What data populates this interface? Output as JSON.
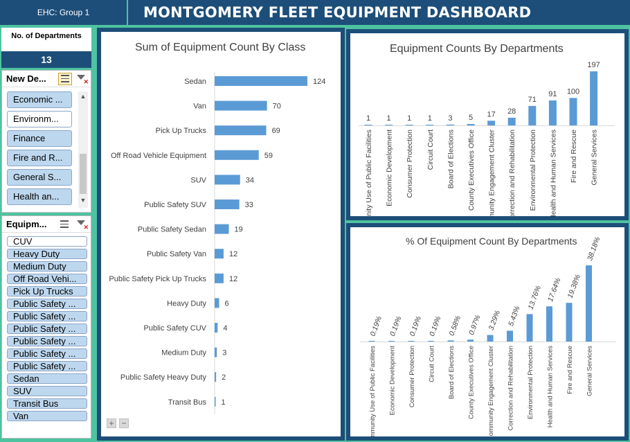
{
  "header": {
    "group_label": "EHC: Group 1",
    "title": "MONTGOMERY FLEET EQUIPMENT DASHBOARD"
  },
  "kpi": {
    "label": "No. of Departments",
    "value": "13"
  },
  "dept_slicer": {
    "title": "New De...",
    "items": [
      {
        "label": "Economic ...",
        "selected": true
      },
      {
        "label": "Environm...",
        "selected": false
      },
      {
        "label": "Finance",
        "selected": true
      },
      {
        "label": "Fire and R...",
        "selected": true
      },
      {
        "label": "General S...",
        "selected": true
      },
      {
        "label": "Health an...",
        "selected": true
      }
    ]
  },
  "equip_slicer": {
    "title": "Equipm...",
    "items": [
      {
        "label": "CUV",
        "selected": false
      },
      {
        "label": "Heavy Duty",
        "selected": true
      },
      {
        "label": "Medium Duty",
        "selected": true
      },
      {
        "label": "Off Road Vehi...",
        "selected": true
      },
      {
        "label": "Pick Up Trucks",
        "selected": true
      },
      {
        "label": "Public Safety ...",
        "selected": true
      },
      {
        "label": "Public Safety ...",
        "selected": true
      },
      {
        "label": "Public Safety ...",
        "selected": true
      },
      {
        "label": "Public Safety ...",
        "selected": true
      },
      {
        "label": "Public Safety ...",
        "selected": true
      },
      {
        "label": "Public Safety ...",
        "selected": true
      },
      {
        "label": "Sedan",
        "selected": true
      },
      {
        "label": "SUV",
        "selected": true
      },
      {
        "label": "Transit Bus",
        "selected": true
      },
      {
        "label": "Van",
        "selected": true
      }
    ]
  },
  "zoom": {
    "plus": "+",
    "minus": "−"
  },
  "colors": {
    "bar": "#5b9bd5",
    "header": "#1d4e79",
    "frame": "#4ec3a0"
  },
  "chart_data": [
    {
      "type": "bar",
      "orientation": "horizontal",
      "title": "Sum of Equipment Count By Class",
      "categories": [
        "Sedan",
        "Van",
        "Pick Up Trucks",
        "Off Road Vehicle Equipment",
        "SUV",
        "Public Safety SUV",
        "Public Safety Sedan",
        "Public Safety Van",
        "Public Safety Pick Up Trucks",
        "Heavy Duty",
        "Public Safety CUV",
        "Medium Duty",
        "Public Safety Heavy Duty",
        "Transit Bus"
      ],
      "values": [
        124,
        70,
        69,
        59,
        34,
        33,
        19,
        12,
        12,
        6,
        4,
        3,
        2,
        1
      ],
      "xlim": [
        0,
        124
      ]
    },
    {
      "type": "bar",
      "title": "Equipment Counts By Departments",
      "categories": [
        "Community Use of Public Facilities",
        "Economic Development",
        "Consumer Protection",
        "Circuit Court",
        "Board of Elections",
        "County Executives Office",
        "Community Engagement Cluster",
        "Correction and Rehabilitation",
        "Environmental Protection",
        "Health and Human Services",
        "Fire and Rescue",
        "General Services"
      ],
      "values": [
        1,
        1,
        1,
        1,
        3,
        5,
        17,
        28,
        71,
        91,
        100,
        197
      ],
      "ylim": [
        0,
        197
      ]
    },
    {
      "type": "bar",
      "title": "% Of Equipment Count By Departments",
      "categories": [
        "Community Use of Public Facilities",
        "Economic Development",
        "Consumer Protection",
        "Circuit Court",
        "Board of Elections",
        "County Executives Office",
        "Community Engagement Cluster",
        "Correction and Rehabilitation",
        "Environmental Protection",
        "Health and Human Services",
        "Fire and Rescue",
        "General Services"
      ],
      "values": [
        0.19,
        0.19,
        0.19,
        0.19,
        0.58,
        0.97,
        3.29,
        5.43,
        13.76,
        17.64,
        19.38,
        38.18
      ],
      "value_labels": [
        "0.19%",
        "0.19%",
        "0.19%",
        "0.19%",
        "0.58%",
        "0.97%",
        "3.29%",
        "5.43%",
        "13.76%",
        "17.64%",
        "19.38%",
        "38.18%"
      ],
      "ylim": [
        0,
        38.18
      ]
    }
  ]
}
